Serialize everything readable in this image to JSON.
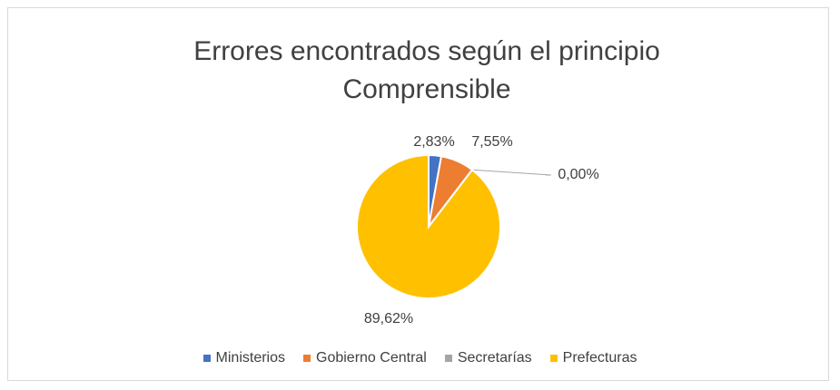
{
  "chart_data": {
    "type": "pie",
    "title": "Errores encontrados según el principio Comprensible",
    "categories": [
      "Ministerios",
      "Gobierno Central",
      "Secretarías",
      "Prefecturas"
    ],
    "values": [
      2.83,
      7.55,
      0.0,
      89.62
    ],
    "value_labels": [
      "2,83%",
      "7,55%",
      "0,00%",
      "89,62%"
    ],
    "colors": [
      "#4472c4",
      "#ed7d31",
      "#a5a5a5",
      "#ffc000"
    ],
    "legend": "bottom"
  }
}
